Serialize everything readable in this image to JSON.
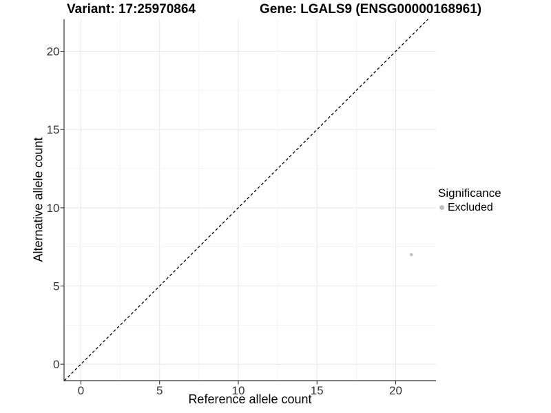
{
  "header": {
    "variant_title": "Variant: 17:25970864",
    "gene_title": "Gene: LGALS9 (ENSG00000168961)"
  },
  "chart_data": {
    "type": "scatter",
    "xlabel": "Reference allele count",
    "ylabel": "Alternative allele count",
    "xlim": [
      -1.07,
      22.56
    ],
    "ylim": [
      -1.05,
      22.05
    ],
    "x_ticks": [
      0,
      5,
      10,
      15,
      20
    ],
    "y_ticks": [
      0,
      5,
      10,
      15,
      20
    ],
    "x_minor_ticks": [
      2.5,
      7.5,
      12.5,
      17.5
    ],
    "y_minor_ticks": [
      2.5,
      7.5,
      12.5,
      17.5
    ],
    "grid": "major+minor",
    "reference_line": {
      "type": "identity",
      "slope": 1,
      "intercept": 0,
      "style": "dashed",
      "color": "#000000"
    },
    "series": [
      {
        "name": "Excluded",
        "color": "#bebebe",
        "points": [
          {
            "x": 21,
            "y": 7
          }
        ]
      }
    ],
    "legend": {
      "position": "right",
      "title": "Significance",
      "items": [
        {
          "label": "Excluded",
          "color": "#bebebe"
        }
      ]
    }
  },
  "colors": {
    "background": "#ffffff",
    "axis_line": "#333333",
    "tick_label": "#333333",
    "grid_major": "#e7e7e7",
    "grid_minor": "#f2f2f2",
    "point": "#bebebe"
  }
}
